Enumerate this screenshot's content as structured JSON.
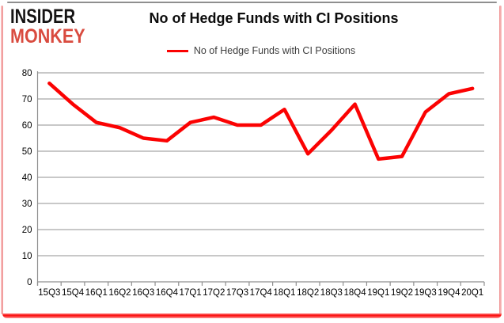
{
  "logo": {
    "line1": "INSIDER",
    "line2": "MONKEY",
    "color1": "#151313",
    "color2": "#d94b3f"
  },
  "title": "No of Hedge Funds with CI Positions",
  "legend": {
    "label": "No of Hedge Funds with CI Positions",
    "line_color": "#fb0202"
  },
  "chart_data": {
    "type": "line",
    "title": "No of Hedge Funds with CI Positions",
    "categories": [
      "15Q3",
      "15Q4",
      "16Q1",
      "16Q2",
      "16Q3",
      "16Q4",
      "17Q1",
      "17Q2",
      "17Q3",
      "17Q4",
      "18Q1",
      "18Q2",
      "18Q3",
      "18Q4",
      "19Q1",
      "19Q2",
      "19Q3",
      "19Q4",
      "20Q1"
    ],
    "series": [
      {
        "name": "No of Hedge Funds with CI Positions",
        "color": "#fb0202",
        "values": [
          76,
          68,
          61,
          59,
          55,
          54,
          61,
          63,
          60,
          60,
          66,
          49,
          58,
          68,
          47,
          48,
          65,
          72,
          74
        ]
      }
    ],
    "xlabel": "",
    "ylabel": "",
    "ylim": [
      0,
      80
    ],
    "yticks": [
      0,
      10,
      20,
      30,
      40,
      50,
      60,
      70,
      80
    ],
    "grid": true,
    "grid_color": "#a7a7a7",
    "axis_color": "#8f8f8f",
    "tick_label_color": "#000000",
    "legend_position": "top"
  }
}
